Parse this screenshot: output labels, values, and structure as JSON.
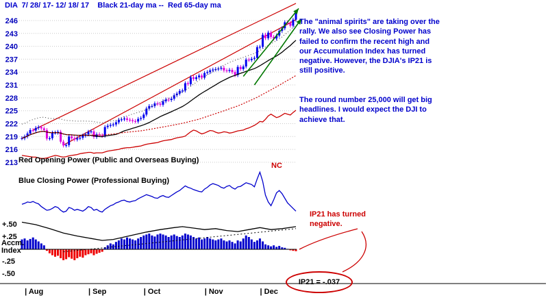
{
  "header": {
    "title": "DIA  7/ 28/ 17- 12/ 18/ 17    Black 21-day ma --  Red 65-day ma"
  },
  "colors": {
    "annotation_blue": "#0000cc",
    "axis_label_blue": "#0000bb",
    "up_candle": "#0000ee",
    "down_candle": "#dd00dd",
    "ma21_black": "#000000",
    "ma65_red": "#cc0000",
    "opening_power_red": "#cc0000",
    "closing_power_blue": "#0000cc",
    "accum_pos": "#0000cc",
    "accum_neg": "#ee0000",
    "green_arrow": "#007700",
    "grid_gray": "#c9c9c9"
  },
  "annotations": {
    "main_note": "The \"animal spirits\" are taking over the rally.  We also see Closing Power has failed to confirm the recent high and our Accumulation Index has turned negative.  However, the DJIA's IP21 is still positive.",
    "round_number_note": "The round number 25,000 will get big headlines.  I would expect the DJI to achieve that.",
    "opening_power_label": "Red Opening Power (Public and Overseas Buying)",
    "closing_power_label": "Blue Closing Power (Professional Buying)",
    "nc_label": "NC",
    "ip21_note": "IP21 has turned negative.",
    "ip21_value_text": "IP21 = -.037"
  },
  "chart_data": {
    "type": "candlestick",
    "title": "DIA 7/28/17 - 12/18/17 with 21-day ma (black), 65-day ma (red), Opening Power, Closing Power and Accumulation Index",
    "date_range": "7/28/17 - 12/18/17",
    "price_axis_ticks": [
      246,
      243,
      240,
      237,
      234,
      231,
      228,
      225,
      222,
      219,
      216,
      213
    ],
    "months": [
      {
        "label": "| Aug",
        "day": 2
      },
      {
        "label": "| Sep",
        "day": 25
      },
      {
        "label": "| Oct",
        "day": 45
      },
      {
        "label": "| Nov",
        "day": 67
      },
      {
        "label": "| Dec",
        "day": 87
      }
    ],
    "closes": [
      218.6,
      219.0,
      219.7,
      220.5,
      220.4,
      221.0,
      221.2,
      220.9,
      220.5,
      218.5,
      218.6,
      219.9,
      219.9,
      220.1,
      217.8,
      216.9,
      217.0,
      219.0,
      218.6,
      218.3,
      218.6,
      218.7,
      219.2,
      219.5,
      220.1,
      220.2,
      218.9,
      219.5,
      219.3,
      219.2,
      221.2,
      221.5,
      221.7,
      221.8,
      222.3,
      222.9,
      223.0,
      223.2,
      222.9,
      222.8,
      222.6,
      222.5,
      223.1,
      223.3,
      224.1,
      225.5,
      226.1,
      226.1,
      226.7,
      226.6,
      226.4,
      227.2,
      227.6,
      227.5,
      227.8,
      228.6,
      229.0,
      229.6,
      229.7,
      231.4,
      231.2,
      232.8,
      232.4,
      232.8,
      233.2,
      232.7,
      233.8,
      234.0,
      234.4,
      234.6,
      234.7,
      234.8,
      235.0,
      234.4,
      234.3,
      234.5,
      234.0,
      233.3,
      235.2,
      234.7,
      235.3,
      236.9,
      236.8,
      237.1,
      237.3,
      239.8,
      239.9,
      242.7,
      241.9,
      243.2,
      242.2,
      241.8,
      242.5,
      243.6,
      244.2,
      245.6,
      245.4,
      244.8,
      246.2,
      247.7
    ],
    "closing_power": [
      25,
      27,
      30,
      29,
      31,
      28,
      26,
      20,
      16,
      12,
      13,
      16,
      20,
      18,
      12,
      8,
      10,
      18,
      16,
      12,
      14,
      12,
      10,
      14,
      20,
      18,
      12,
      14,
      10,
      8,
      14,
      18,
      22,
      24,
      28,
      30,
      33,
      34,
      31,
      30,
      32,
      33,
      37,
      40,
      43,
      46,
      44,
      42,
      39,
      38,
      42,
      44,
      41,
      40,
      44,
      48,
      52,
      55,
      60,
      65,
      62,
      60,
      57,
      55,
      53,
      52,
      58,
      62,
      67,
      70,
      68,
      66,
      62,
      60,
      64,
      66,
      61,
      58,
      63,
      64,
      68,
      72,
      70,
      68,
      63,
      80,
      95,
      75,
      45,
      30,
      22,
      35,
      50,
      55,
      48,
      38,
      28,
      22,
      16,
      10
    ],
    "opening_power": [
      214.6,
      214.5,
      214.4,
      214.3,
      214.2,
      214.2,
      214.0,
      213.9,
      213.9,
      214.0,
      214.2,
      214.4,
      214.6,
      214.5,
      214.3,
      214.2,
      214.3,
      214.5,
      214.6,
      214.7,
      214.8,
      215.0,
      215.1,
      215.2,
      215.3,
      215.3,
      215.1,
      215.2,
      215.2,
      215.2,
      215.4,
      215.6,
      215.7,
      215.8,
      215.9,
      216.0,
      216.2,
      216.3,
      216.4,
      216.4,
      216.5,
      216.6,
      216.7,
      216.8,
      217.0,
      217.2,
      217.3,
      217.4,
      217.5,
      217.6,
      217.8,
      218.0,
      218.1,
      218.2,
      218.3,
      218.5,
      218.7,
      218.8,
      218.9,
      219.1,
      219.6,
      220.1,
      220.5,
      220.3,
      219.9,
      219.6,
      219.8,
      220.1,
      220.4,
      220.3,
      220.0,
      219.8,
      219.9,
      220.1,
      220.0,
      219.8,
      219.9,
      220.1,
      220.3,
      220.4,
      220.5,
      220.8,
      221.0,
      221.3,
      221.6,
      222.0,
      222.5,
      222.4,
      223.0,
      223.8,
      224.2,
      223.8,
      223.4,
      223.6,
      224.0,
      224.4,
      224.2,
      224.0,
      224.6,
      225.1
    ],
    "accum_index": [
      0.2,
      0.22,
      0.18,
      0.21,
      0.24,
      0.2,
      0.16,
      0.12,
      0.08,
      -0.03,
      -0.08,
      -0.12,
      -0.15,
      -0.13,
      -0.18,
      -0.22,
      -0.2,
      -0.16,
      -0.19,
      -0.22,
      -0.18,
      -0.15,
      -0.17,
      -0.12,
      -0.1,
      -0.08,
      -0.12,
      -0.09,
      -0.07,
      -0.05,
      0.04,
      0.08,
      0.12,
      0.1,
      0.15,
      0.18,
      0.22,
      0.2,
      0.24,
      0.22,
      0.2,
      0.18,
      0.22,
      0.25,
      0.28,
      0.3,
      0.32,
      0.28,
      0.26,
      0.3,
      0.32,
      0.3,
      0.28,
      0.25,
      0.28,
      0.3,
      0.27,
      0.25,
      0.28,
      0.32,
      0.3,
      0.28,
      0.25,
      0.22,
      0.24,
      0.2,
      0.22,
      0.25,
      0.22,
      0.2,
      0.18,
      0.2,
      0.22,
      0.18,
      0.16,
      0.18,
      0.15,
      0.12,
      0.18,
      0.16,
      0.22,
      0.28,
      0.25,
      0.2,
      0.15,
      0.18,
      0.22,
      0.16,
      0.1,
      0.08,
      0.06,
      0.08,
      0.05,
      0.07,
      0.04,
      0.03,
      0.01,
      -0.02,
      -0.03,
      -0.037
    ],
    "accum_ma": [
      [
        0,
        0.55
      ],
      [
        5,
        0.5
      ],
      [
        10,
        0.42
      ],
      [
        15,
        0.33
      ],
      [
        20,
        0.27
      ],
      [
        25,
        0.22
      ],
      [
        29,
        0.18
      ],
      [
        33,
        0.2
      ],
      [
        37,
        0.25
      ],
      [
        41,
        0.3
      ],
      [
        45,
        0.35
      ],
      [
        50,
        0.4
      ],
      [
        55,
        0.44
      ],
      [
        58,
        0.46
      ],
      [
        62,
        0.43
      ],
      [
        66,
        0.4
      ],
      [
        70,
        0.42
      ],
      [
        74,
        0.38
      ],
      [
        78,
        0.36
      ],
      [
        82,
        0.4
      ],
      [
        86,
        0.44
      ],
      [
        90,
        0.4
      ],
      [
        94,
        0.42
      ],
      [
        99,
        0.46
      ]
    ],
    "accum_trend": {
      "d1": 15,
      "v1": -0.05,
      "d2": 99,
      "v2": 0.42
    },
    "accum_axis": [
      {
        "label": "+.50",
        "v": 0.5
      },
      {
        "label": "+.25",
        "v": 0.25
      },
      {
        "label": "-.25",
        "v": -0.25
      },
      {
        "label": "-.50",
        "v": -0.5
      }
    ],
    "accum_axis_title": [
      "Accm.",
      "Index"
    ],
    "trendlines": [
      {
        "d1": 4,
        "p1": 220.5,
        "d2": 99,
        "p2": 250.0
      },
      {
        "d1": 15,
        "p1": 217.0,
        "d2": 99,
        "p2": 246.2
      }
    ],
    "arrows": [
      {
        "d1": 80,
        "p1": 233.0,
        "d2": 100,
        "p2": 248.8
      },
      {
        "d1": 84,
        "p1": 231.0,
        "d2": 101,
        "p2": 246.4
      }
    ],
    "ip21_value": -0.037
  }
}
